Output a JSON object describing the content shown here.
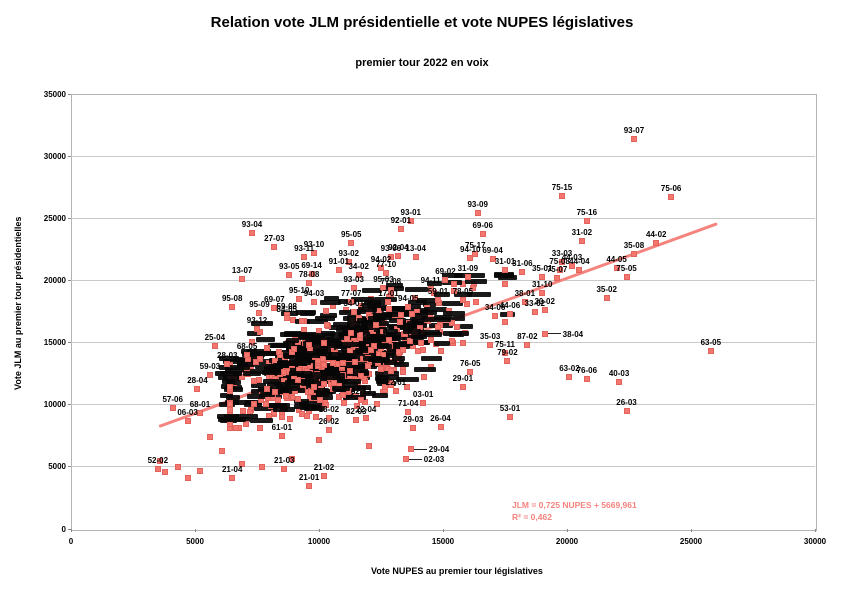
{
  "title": "Relation vote JLM présidentielle et vote NUPES législatives",
  "subtitle": "premier tour 2022 en voix",
  "chart_data": {
    "type": "scatter",
    "title": "Relation vote JLM présidentielle et vote NUPES législatives",
    "subtitle": "premier tour 2022 en voix",
    "xlabel": "Vote NUPES au premier tour législatives",
    "ylabel": "Vote JLM au premier tour présidentielles",
    "xlim": [
      0,
      30000
    ],
    "ylim": [
      0,
      35000
    ],
    "xtick_step": 5000,
    "ytick_step": 5000,
    "grid": "horizontal",
    "marker_color": "#f4766f",
    "trendline": {
      "slope": 0.725,
      "intercept": 5669.961,
      "equation": "JLM = 0,725 NUPES + 5669,961",
      "r2": "R² = 0,462",
      "x_start": 3550,
      "x_end": 26050,
      "color": "#f5837e"
    },
    "labeled_points": [
      [
        "93-07",
        22700,
        31400
      ],
      [
        "75-15",
        19800,
        26800
      ],
      [
        "75-06",
        24200,
        26700
      ],
      [
        "93-09",
        16400,
        25400
      ],
      [
        "93-01",
        13700,
        24800
      ],
      [
        "75-16",
        20800,
        24800
      ],
      [
        "92-01",
        13300,
        24100
      ],
      [
        "93-04",
        7300,
        23800
      ],
      [
        "69-06",
        16600,
        23700
      ],
      [
        "31-02",
        20600,
        23200
      ],
      [
        "95-05",
        11300,
        23000
      ],
      [
        "44-02",
        23600,
        23000
      ],
      [
        "27-03",
        8200,
        22700
      ],
      [
        "93-10",
        9800,
        22200
      ],
      [
        "35-08",
        22700,
        22100
      ],
      [
        "75-17",
        16300,
        22100
      ],
      [
        "93-11",
        9400,
        21900
      ],
      [
        "13-04",
        13900,
        21900
      ],
      [
        "93-06",
        12900,
        21900
      ],
      [
        "92-04",
        13200,
        22000
      ],
      [
        "94-10",
        16100,
        21800
      ],
      [
        "69-04",
        17000,
        21700
      ],
      [
        "93-02",
        11200,
        21500
      ],
      [
        "33-03",
        19800,
        21500
      ],
      [
        "44-03",
        20200,
        21200
      ],
      [
        "44-05",
        22000,
        21000
      ],
      [
        "94-02",
        12500,
        21000
      ],
      [
        "91-01",
        10800,
        20800
      ],
      [
        "44-04",
        20500,
        20800
      ],
      [
        "75-08",
        19700,
        20800
      ],
      [
        "31-01",
        17500,
        20800
      ],
      [
        "31-06",
        18200,
        20700
      ],
      [
        "77-10",
        12700,
        20600
      ],
      [
        "69-14",
        9700,
        20500
      ],
      [
        "34-02",
        11600,
        20400
      ],
      [
        "93-05",
        8800,
        20400
      ],
      [
        "75-05",
        22400,
        20300
      ],
      [
        "35-01",
        19000,
        20300
      ],
      [
        "31-09",
        16000,
        20300
      ],
      [
        "75-07",
        19600,
        20200
      ],
      [
        "13-07",
        6900,
        20100
      ],
      [
        "69-02",
        15100,
        20000
      ],
      [
        "78-08",
        9600,
        19800
      ],
      [
        "93-03",
        11400,
        19400
      ],
      [
        "95-03",
        12600,
        19400
      ],
      [
        "94-11",
        14500,
        19300
      ],
      [
        "77-08",
        12900,
        19200
      ],
      [
        "31-10",
        19000,
        19000
      ],
      [
        "35-02",
        21600,
        18600
      ],
      [
        "95-10",
        9200,
        18500
      ],
      [
        "59-01",
        14800,
        18400
      ],
      [
        "78-05",
        15800,
        18400
      ],
      [
        "17-01",
        12800,
        18300
      ],
      [
        "77-07",
        11300,
        18300
      ],
      [
        "94-03",
        9800,
        18300
      ],
      [
        "38-01",
        18300,
        18300
      ],
      [
        "94-05",
        13600,
        17900
      ],
      [
        "95-08",
        6500,
        17900
      ],
      [
        "69-07",
        8200,
        17800
      ],
      [
        "30-02",
        19100,
        17600
      ],
      [
        "33-02",
        18700,
        17500
      ],
      [
        "34-01",
        11400,
        17500
      ],
      [
        "95-09",
        7600,
        17400
      ],
      [
        "44-06",
        17700,
        17300
      ],
      [
        "59-08",
        8700,
        17200
      ],
      [
        "34-06",
        17100,
        17100
      ],
      [
        "84-05",
        8700,
        17000
      ],
      [
        "93-12",
        7500,
        16100
      ],
      [
        "38-04",
        19100,
        15700
      ],
      [
        "35-03",
        16900,
        14800
      ],
      [
        "87-02",
        18400,
        14800
      ],
      [
        "25-04",
        5800,
        14700
      ],
      [
        "63-05",
        25800,
        14300
      ],
      [
        "75-11",
        17500,
        14200
      ],
      [
        "68-05",
        7100,
        14000
      ],
      [
        "79-02",
        17600,
        13500
      ],
      [
        "28-03",
        6300,
        13300
      ],
      [
        "76-05",
        16100,
        12600
      ],
      [
        "59-03",
        5600,
        12400
      ],
      [
        "63-02",
        20100,
        12200
      ],
      [
        "76-06",
        20800,
        12100
      ],
      [
        "40-03",
        22100,
        11800
      ],
      [
        "29-01",
        15800,
        11400
      ],
      [
        "28-04",
        5100,
        11300
      ],
      [
        "22-01",
        13100,
        11100
      ],
      [
        "62-12",
        11700,
        10400
      ],
      [
        "03-01",
        14200,
        10100
      ],
      [
        "57-06",
        4100,
        9700
      ],
      [
        "26-03",
        22400,
        9500
      ],
      [
        "71-04",
        13600,
        9400
      ],
      [
        "68-01",
        5200,
        9300
      ],
      [
        "53-01",
        17700,
        9000
      ],
      [
        "18-02",
        10400,
        8900
      ],
      [
        "22-04",
        11900,
        8900
      ],
      [
        "82-03",
        11500,
        8800
      ],
      [
        "06-03",
        4700,
        8700
      ],
      [
        "26-02",
        10400,
        8000
      ],
      [
        "29-03",
        13800,
        8100
      ],
      [
        "26-04",
        14900,
        8200
      ],
      [
        "61-01",
        8500,
        7500
      ],
      [
        "29-04",
        13700,
        6400
      ],
      [
        "02-03",
        13500,
        5600
      ],
      [
        "52-02",
        3500,
        4800
      ],
      [
        "21-03",
        8600,
        4800
      ],
      [
        "21-04",
        6500,
        4100
      ],
      [
        "21-02",
        10200,
        4300
      ],
      [
        "21-01",
        9600,
        3500
      ]
    ],
    "leader_labels": [
      "38-04",
      "29-04",
      "02-03"
    ],
    "extra_points": [
      [
        3800,
        4600
      ],
      [
        4300,
        5000
      ],
      [
        4700,
        4100
      ],
      [
        5200,
        4700
      ],
      [
        3600,
        5500
      ],
      [
        6900,
        5200
      ],
      [
        7700,
        5000
      ],
      [
        8900,
        5600
      ],
      [
        6100,
        6300
      ],
      [
        10000,
        7200
      ],
      [
        12000,
        6700
      ],
      [
        5600,
        7400
      ]
    ],
    "dense_cluster": {
      "note": "central mass of overlapping constituency code labels, too dense to read individually",
      "count": 430,
      "seed": 20220612,
      "x_mean": 10700,
      "x_sd": 2450,
      "x_min": 6400,
      "x_max": 17500,
      "slope": 0.725,
      "intercept": 5670,
      "y_noise_sd": 1950,
      "y_min": 8100,
      "y_max": 19700
    }
  }
}
